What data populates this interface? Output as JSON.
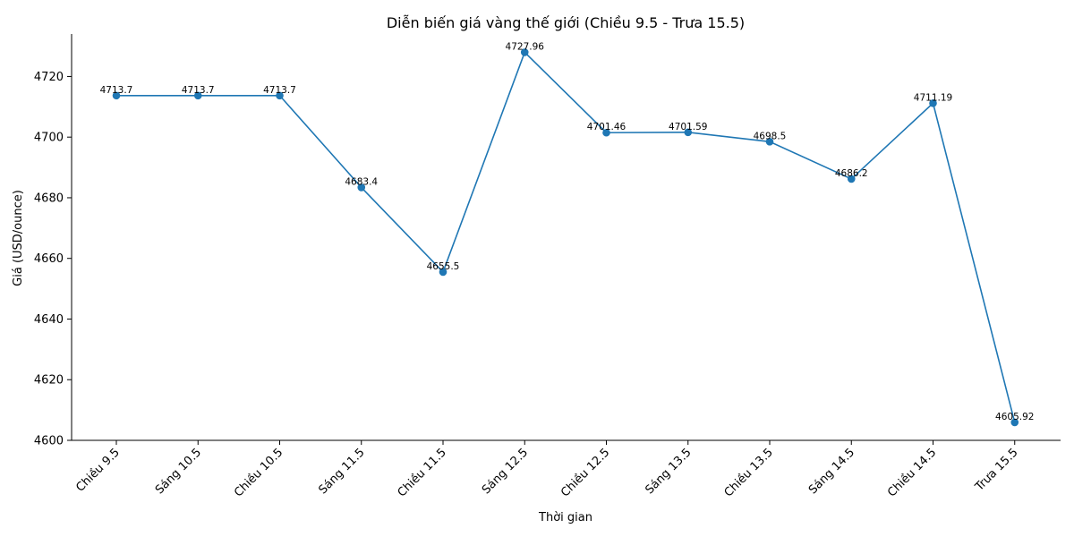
{
  "chart_data": {
    "type": "line",
    "title": "Diễn biến giá vàng thế giới (Chiều 9.5 - Trưa 15.5)",
    "xlabel": "Thời gian",
    "ylabel": "Giá (USD/ounce)",
    "categories": [
      "Chiều 9.5",
      "Sáng 10.5",
      "Chiều 10.5",
      "Sáng 11.5",
      "Chiều 11.5",
      "Sáng 12.5",
      "Chiều 12.5",
      "Sáng 13.5",
      "Chiều 13.5",
      "Sáng 14.5",
      "Chiều 14.5",
      "Trưa 15.5"
    ],
    "values": [
      4713.7,
      4713.7,
      4713.7,
      4683.4,
      4655.5,
      4727.96,
      4701.46,
      4701.59,
      4698.5,
      4686.2,
      4711.19,
      4605.92
    ],
    "data_labels": [
      "4713.7",
      "4713.7",
      "4713.7",
      "4683.4",
      "4655.5",
      "4727.96",
      "4701.46",
      "4701.59",
      "4698.5",
      "4686.2",
      "4711.19",
      "4605.92"
    ],
    "ylim": [
      4600,
      4734
    ],
    "yticks": [
      4600,
      4620,
      4640,
      4660,
      4680,
      4700,
      4720
    ],
    "grid": false,
    "legend": "none",
    "line_color": "#1f77b4"
  }
}
